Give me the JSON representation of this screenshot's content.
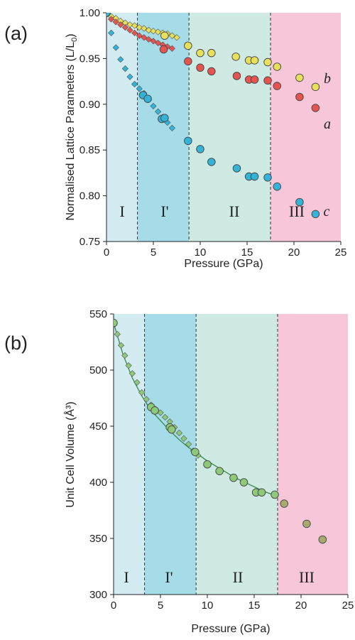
{
  "colors": {
    "region_I": "#d3ecf2",
    "region_I_prime": "#a6dce8",
    "region_II": "#cfeae3",
    "region_III": "#f7c7d9",
    "series_a": "#e5544f",
    "series_b": "#e8e05a",
    "series_c": "#33b3d8",
    "volume": "#8ec97a",
    "volume_late": "#a8ab70"
  },
  "chart_data": [
    {
      "panel_label": "(a)",
      "type": "scatter",
      "xlabel": "Pressure (GPa)",
      "ylabel": "Normalised Lattice Parameters (L/L0)",
      "xlim": [
        0,
        25
      ],
      "ylim": [
        0.75,
        1.0
      ],
      "xticks": [
        "0",
        "5",
        "10",
        "15",
        "20",
        "25"
      ],
      "yticks": [
        "0.75",
        "0.80",
        "0.85",
        "0.90",
        "0.95",
        "1.00"
      ],
      "regions": [
        {
          "label": "I",
          "from": 0,
          "to": 3.3
        },
        {
          "label": "I'",
          "from": 3.3,
          "to": 8.8
        },
        {
          "label": "II",
          "from": 8.8,
          "to": 17.5
        },
        {
          "label": "III",
          "from": 17.5,
          "to": 25
        }
      ],
      "series": [
        {
          "name": "b",
          "color_key": "series_b",
          "diamonds": [
            [
              0.5,
              0.996
            ],
            [
              1.0,
              0.994
            ],
            [
              1.5,
              0.991
            ],
            [
              2.0,
              0.989
            ],
            [
              2.5,
              0.987
            ],
            [
              3.0,
              0.986
            ],
            [
              3.5,
              0.984
            ],
            [
              4.0,
              0.983
            ],
            [
              4.5,
              0.981
            ],
            [
              5.0,
              0.98
            ],
            [
              5.5,
              0.979
            ],
            [
              6.0,
              0.978
            ],
            [
              6.5,
              0.977
            ],
            [
              7.0,
              0.975
            ],
            [
              7.5,
              0.973
            ]
          ],
          "circles": [
            [
              0,
              1.0
            ],
            [
              6.2,
              0.975
            ],
            [
              8.7,
              0.964
            ],
            [
              10.0,
              0.956
            ],
            [
              11.2,
              0.956
            ],
            [
              13.8,
              0.952
            ],
            [
              15.2,
              0.948
            ],
            [
              15.8,
              0.948
            ],
            [
              17.2,
              0.946
            ],
            [
              18.2,
              0.941
            ],
            [
              20.6,
              0.929
            ],
            [
              22.3,
              0.919
            ]
          ]
        },
        {
          "name": "a",
          "color_key": "series_a",
          "diamonds": [
            [
              0.5,
              0.993
            ],
            [
              1.0,
              0.99
            ],
            [
              1.5,
              0.987
            ],
            [
              2.0,
              0.984
            ],
            [
              2.5,
              0.981
            ],
            [
              3.0,
              0.978
            ],
            [
              3.5,
              0.975
            ],
            [
              4.0,
              0.973
            ],
            [
              4.5,
              0.971
            ],
            [
              5.0,
              0.969
            ],
            [
              5.5,
              0.967
            ],
            [
              6.0,
              0.965
            ],
            [
              6.5,
              0.963
            ],
            [
              7.0,
              0.961
            ]
          ],
          "circles": [
            [
              0,
              1.0
            ],
            [
              6.1,
              0.96
            ],
            [
              8.7,
              0.947
            ],
            [
              10.0,
              0.94
            ],
            [
              11.2,
              0.936
            ],
            [
              13.9,
              0.931
            ],
            [
              15.2,
              0.927
            ],
            [
              15.8,
              0.927
            ],
            [
              17.2,
              0.926
            ],
            [
              18.2,
              0.92
            ],
            [
              20.6,
              0.908
            ],
            [
              22.3,
              0.896
            ]
          ]
        },
        {
          "name": "c",
          "color_key": "series_c",
          "diamonds": [
            [
              0.5,
              0.978
            ],
            [
              1.0,
              0.962
            ],
            [
              1.5,
              0.949
            ],
            [
              2.0,
              0.939
            ],
            [
              2.5,
              0.93
            ],
            [
              3.0,
              0.922
            ],
            [
              3.5,
              0.917
            ],
            [
              4.0,
              0.912
            ],
            [
              4.5,
              0.905
            ],
            [
              5.0,
              0.898
            ],
            [
              5.5,
              0.892
            ],
            [
              6.0,
              0.886
            ],
            [
              6.5,
              0.88
            ],
            [
              7.0,
              0.874
            ]
          ],
          "circles": [
            [
              0,
              1.0
            ],
            [
              3.9,
              0.91
            ],
            [
              4.4,
              0.906
            ],
            [
              5.9,
              0.884
            ],
            [
              6.2,
              0.885
            ],
            [
              8.7,
              0.86
            ],
            [
              10.0,
              0.851
            ],
            [
              11.2,
              0.837
            ],
            [
              13.9,
              0.83
            ],
            [
              15.2,
              0.821
            ],
            [
              15.8,
              0.821
            ],
            [
              17.2,
              0.82
            ],
            [
              18.2,
              0.81
            ],
            [
              20.6,
              0.793
            ],
            [
              22.3,
              0.78
            ]
          ]
        }
      ]
    },
    {
      "panel_label": "(b)",
      "type": "scatter",
      "xlabel": "Pressure (GPa)",
      "ylabel": "Unit Cell Volume (Å³)",
      "xlim": [
        0,
        25
      ],
      "ylim": [
        300,
        550
      ],
      "xticks": [
        "0",
        "5",
        "10",
        "15",
        "20",
        "25"
      ],
      "yticks": [
        "300",
        "350",
        "400",
        "450",
        "500",
        "550"
      ],
      "regions": [
        {
          "label": "I",
          "from": 0,
          "to": 3.3
        },
        {
          "label": "I'",
          "from": 3.3,
          "to": 8.8
        },
        {
          "label": "II",
          "from": 8.8,
          "to": 17.5
        },
        {
          "label": "III",
          "from": 17.5,
          "to": 25
        }
      ],
      "fit_curve": [
        [
          0,
          542
        ],
        [
          1,
          514
        ],
        [
          2,
          493
        ],
        [
          3,
          477
        ],
        [
          4,
          464
        ],
        [
          5,
          455
        ],
        [
          6,
          446
        ],
        [
          7,
          438
        ],
        [
          8,
          431
        ],
        [
          9,
          425
        ],
        [
          10,
          419
        ],
        [
          11,
          414
        ],
        [
          12,
          409
        ],
        [
          13,
          404
        ],
        [
          14,
          400
        ],
        [
          15,
          396
        ],
        [
          16,
          392
        ],
        [
          17,
          389
        ]
      ],
      "diamonds": [
        [
          0.4,
          532
        ],
        [
          0.8,
          522
        ],
        [
          1.2,
          513
        ],
        [
          1.6,
          504
        ],
        [
          2.0,
          497
        ],
        [
          2.5,
          489
        ],
        [
          3.0,
          480
        ],
        [
          3.5,
          474
        ],
        [
          4.0,
          469
        ],
        [
          4.5,
          465
        ],
        [
          5.0,
          462
        ],
        [
          5.5,
          458
        ],
        [
          6.0,
          454
        ],
        [
          6.5,
          449
        ],
        [
          7.0,
          444
        ],
        [
          7.5,
          439
        ],
        [
          8.0,
          434
        ],
        [
          8.5,
          428
        ],
        [
          9.0,
          424
        ]
      ],
      "circles": [
        [
          0,
          542
        ],
        [
          4.0,
          467
        ],
        [
          4.4,
          464
        ],
        [
          6.0,
          449
        ],
        [
          6.2,
          447
        ],
        [
          8.7,
          427
        ],
        [
          10.0,
          416
        ],
        [
          11.3,
          410
        ],
        [
          12.8,
          404
        ],
        [
          13.9,
          400
        ],
        [
          15.2,
          391
        ],
        [
          15.8,
          391
        ],
        [
          17.2,
          389
        ]
      ],
      "late_circles": [
        [
          18.2,
          381
        ],
        [
          20.6,
          363
        ],
        [
          22.3,
          349
        ]
      ]
    }
  ]
}
